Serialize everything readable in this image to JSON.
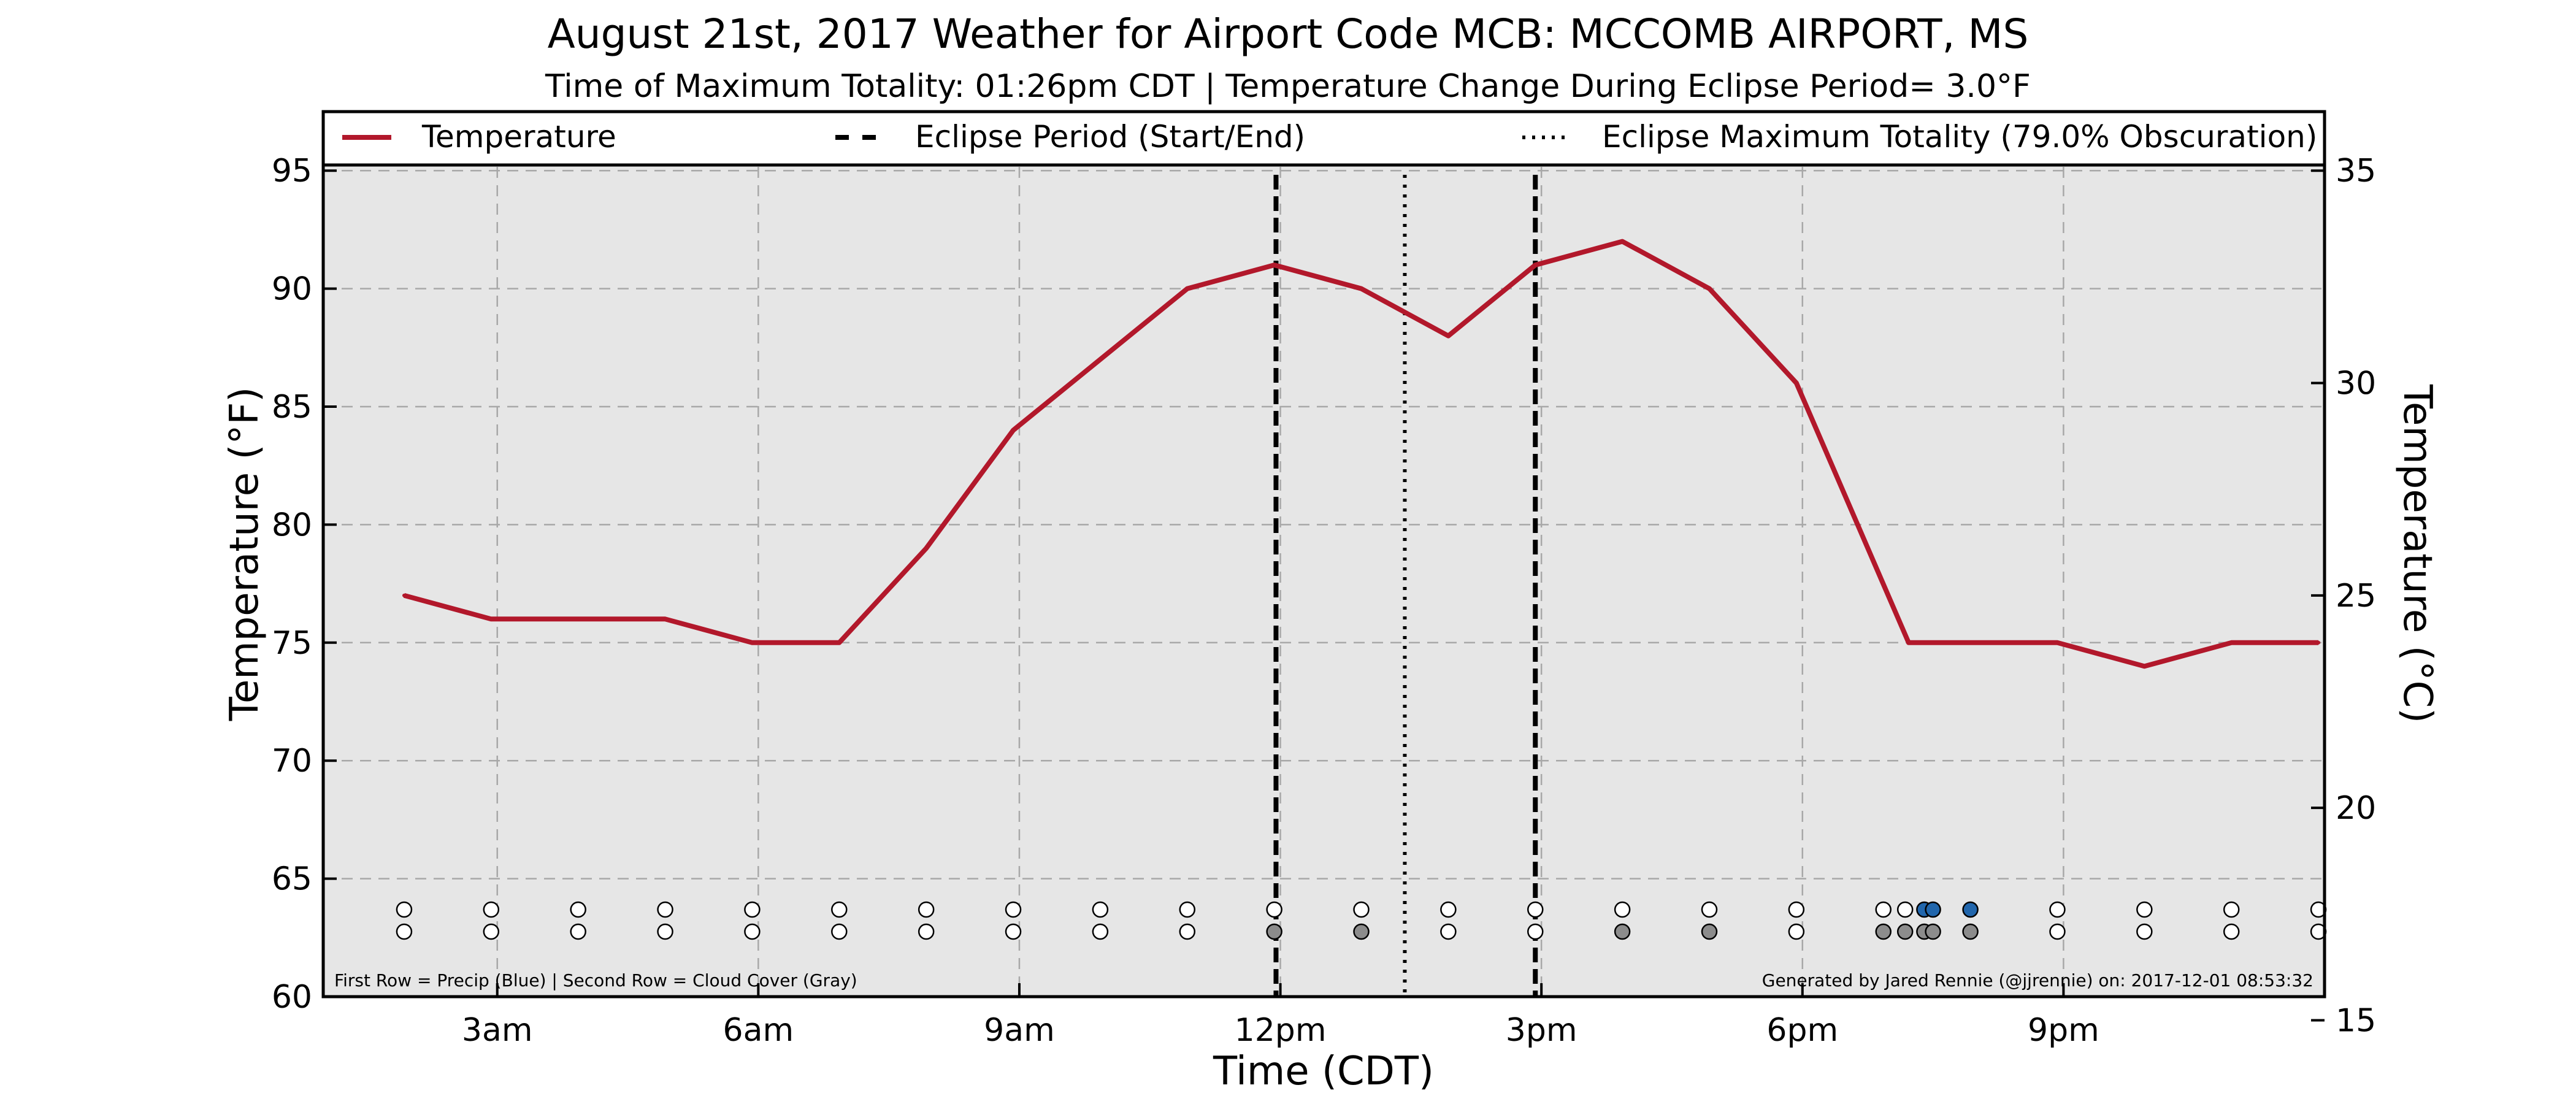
{
  "chart_data": {
    "type": "line",
    "title": "August 21st, 2017 Weather for Airport Code MCB: MCCOMB AIRPORT, MS",
    "subtitle": "Time of Maximum Totality: 01:26pm CDT | Temperature Change During Eclipse Period= 3.0°F",
    "xlabel": "Time (CDT)",
    "ylabel_left": "Temperature (°F)",
    "ylabel_right": "Temperature (°C)",
    "ylim": [
      60,
      97.5
    ],
    "ylim_celsius": [
      15.56,
      36.39
    ],
    "xlim_hours": [
      1.0,
      24.0
    ],
    "x_ticks": [
      {
        "hour": 3,
        "label": "3am"
      },
      {
        "hour": 6,
        "label": "6am"
      },
      {
        "hour": 9,
        "label": "9am"
      },
      {
        "hour": 12,
        "label": "12pm"
      },
      {
        "hour": 15,
        "label": "3pm"
      },
      {
        "hour": 18,
        "label": "6pm"
      },
      {
        "hour": 21,
        "label": "9pm"
      }
    ],
    "y_ticks_left": [
      60,
      65,
      70,
      75,
      80,
      85,
      90,
      95
    ],
    "y_ticks_right": [
      15,
      20,
      25,
      30,
      35
    ],
    "grid": true,
    "legend": {
      "placement": "top",
      "entries": [
        {
          "label": "Temperature",
          "style": "solid"
        },
        {
          "label": "Eclipse Period (Start/End)",
          "style": "dashed"
        },
        {
          "label": "Eclipse Maximum Totality (79.0% Obscuration)",
          "style": "dotted"
        }
      ]
    },
    "series": [
      {
        "name": "Temperature",
        "color": "#b2182b",
        "x": [
          "1:56am",
          "2:56am",
          "3:56am",
          "4:56am",
          "5:56am",
          "6:56am",
          "7:56am",
          "8:56am",
          "9:56am",
          "10:56am",
          "11:56am",
          "12:56pm",
          "1:56pm",
          "2:56pm",
          "3:56pm",
          "4:56pm",
          "5:56pm",
          "7:13pm",
          "8:56pm",
          "9:56pm",
          "10:56pm",
          "11:56pm"
        ],
        "x_hours": [
          1.93,
          2.93,
          3.93,
          4.93,
          5.93,
          6.93,
          7.93,
          8.93,
          9.93,
          10.93,
          11.93,
          12.93,
          13.93,
          14.93,
          15.93,
          16.93,
          17.93,
          19.22,
          20.93,
          21.93,
          22.93,
          23.93
        ],
        "y": [
          77,
          76,
          76,
          76,
          75,
          75,
          79,
          84,
          87,
          90,
          91,
          90,
          88,
          91,
          92,
          90,
          86,
          75,
          75,
          74,
          75,
          75
        ]
      }
    ],
    "eclipse_start_hour": 11.95,
    "eclipse_end_hour": 14.93,
    "eclipse_max_hour": 13.43,
    "eclipse_start": "11:57am",
    "eclipse_end": "2:56pm",
    "eclipse_max": "01:26pm",
    "markers": {
      "x_hours": [
        1.93,
        2.93,
        3.93,
        4.93,
        5.93,
        6.93,
        7.93,
        8.93,
        9.93,
        10.93,
        11.93,
        12.93,
        13.93,
        14.93,
        15.93,
        16.93,
        17.93,
        18.93,
        19.18,
        19.4,
        19.5,
        19.93,
        20.93,
        21.93,
        22.93,
        23.93
      ],
      "precip": [
        0,
        0,
        0,
        0,
        0,
        0,
        0,
        0,
        0,
        0,
        0,
        0,
        0,
        0,
        0,
        0,
        0,
        0,
        0,
        1,
        1,
        1,
        0,
        0,
        0,
        0
      ],
      "cloud": [
        0,
        0,
        0,
        0,
        0,
        0,
        0,
        0,
        0,
        0,
        1,
        1,
        0,
        0,
        1,
        1,
        0,
        1,
        1,
        1,
        1,
        1,
        0,
        0,
        0,
        0
      ]
    },
    "marker_colors": {
      "none": "#ffffff",
      "precip": "#2166ac",
      "cloud": "#8c8c8c"
    },
    "footnote_left": "First Row = Precip (Blue) | Second Row = Cloud Cover (Gray)",
    "footnote_right": "Generated by Jared Rennie (@jjrennie) on: 2017-12-01 08:53:32",
    "colors": {
      "plot_background": "#e6e6e6",
      "temperature_line": "#b2182b"
    }
  }
}
